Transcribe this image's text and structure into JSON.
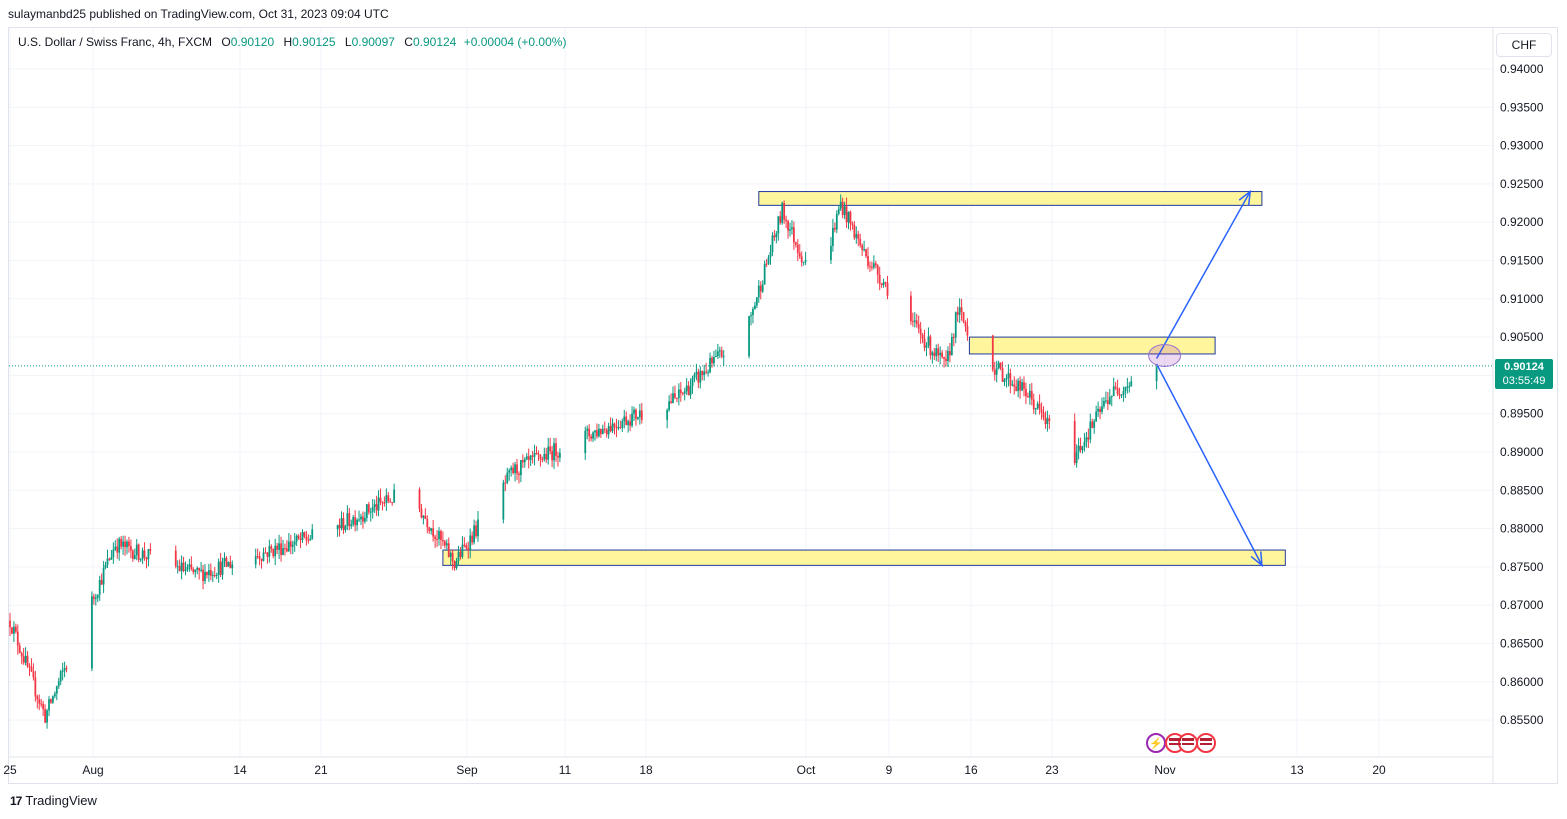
{
  "header": {
    "published": "sulaymanbd25 published on TradingView.com, Oct 31, 2023 09:04 UTC"
  },
  "legend": {
    "symbol": "U.S. Dollar / Swiss Franc, 4h, FXCM",
    "o_label": "O",
    "o": "0.90120",
    "h_label": "H",
    "h": "0.90125",
    "l_label": "L",
    "l": "0.90097",
    "c_label": "C",
    "c": "0.90124",
    "change": "+0.00004 (+0.00%)"
  },
  "currency": "CHF",
  "last_price": {
    "price": "0.90124",
    "countdown": "03:55:49"
  },
  "footer": {
    "brand": "TradingView",
    "logo": "tradingview-logo-icon"
  },
  "colors": {
    "up": "#089981",
    "down": "#f23645",
    "zone_fill": "#fff59d",
    "zone_border": "#1e3a9a",
    "arrow": "#2962ff"
  },
  "chart_data": {
    "type": "candlestick",
    "y_ticks": [
      "0.94000",
      "0.93500",
      "0.93000",
      "0.92500",
      "0.92000",
      "0.91500",
      "0.91000",
      "0.90500",
      "0.90000",
      "0.89500",
      "0.89000",
      "0.88500",
      "0.88000",
      "0.87500",
      "0.87000",
      "0.86500",
      "0.86000",
      "0.85500"
    ],
    "x_ticks": [
      "25",
      "Aug",
      "14",
      "21",
      "Sep",
      "11",
      "18",
      "Oct",
      "9",
      "16",
      "23",
      "Nov",
      "13",
      "20"
    ],
    "ylim": [
      0.852,
      0.9415
    ],
    "key_points": [
      {
        "date": "2023-07-25",
        "close": 0.868
      },
      {
        "date": "2023-07-28",
        "close": 0.8555
      },
      {
        "date": "2023-08-03",
        "close": 0.878
      },
      {
        "date": "2023-08-10",
        "close": 0.874
      },
      {
        "date": "2023-08-21",
        "close": 0.8795
      },
      {
        "date": "2023-08-28",
        "close": 0.885
      },
      {
        "date": "2023-09-01",
        "close": 0.8755
      },
      {
        "date": "2023-09-06",
        "close": 0.8875
      },
      {
        "date": "2023-09-12",
        "close": 0.892
      },
      {
        "date": "2023-09-20",
        "close": 0.897
      },
      {
        "date": "2023-09-26",
        "close": 0.906
      },
      {
        "date": "2023-09-29",
        "close": 0.9215
      },
      {
        "date": "2023-10-02",
        "close": 0.911
      },
      {
        "date": "2023-10-04",
        "close": 0.9225
      },
      {
        "date": "2023-10-06",
        "close": 0.916
      },
      {
        "date": "2023-10-10",
        "close": 0.907
      },
      {
        "date": "2023-10-13",
        "close": 0.901
      },
      {
        "date": "2023-10-14",
        "close": 0.9085
      },
      {
        "date": "2023-10-16",
        "close": 0.9025
      },
      {
        "date": "2023-10-20",
        "close": 0.8975
      },
      {
        "date": "2023-10-23",
        "close": 0.8905
      },
      {
        "date": "2023-10-24",
        "close": 0.8895
      },
      {
        "date": "2023-10-27",
        "close": 0.8975
      },
      {
        "date": "2023-10-31",
        "close": 0.90124
      }
    ],
    "zones": [
      {
        "from": "2023-09-27",
        "to": "2023-11-09",
        "low": 0.9222,
        "high": 0.924
      },
      {
        "from": "2023-10-15",
        "to": "2023-11-05",
        "low": 0.9028,
        "high": 0.905
      },
      {
        "from": "2023-08-31",
        "to": "2023-11-11",
        "low": 0.8752,
        "high": 0.8772
      }
    ],
    "arrows": [
      {
        "from": {
          "date": "2023-10-31",
          "price": 0.9022
        },
        "to": {
          "date": "2023-11-08",
          "price": 0.924
        }
      },
      {
        "from": {
          "date": "2023-10-31",
          "price": 0.9015
        },
        "to": {
          "date": "2023-11-09",
          "price": 0.8752
        }
      }
    ],
    "last_price": 0.90124
  }
}
